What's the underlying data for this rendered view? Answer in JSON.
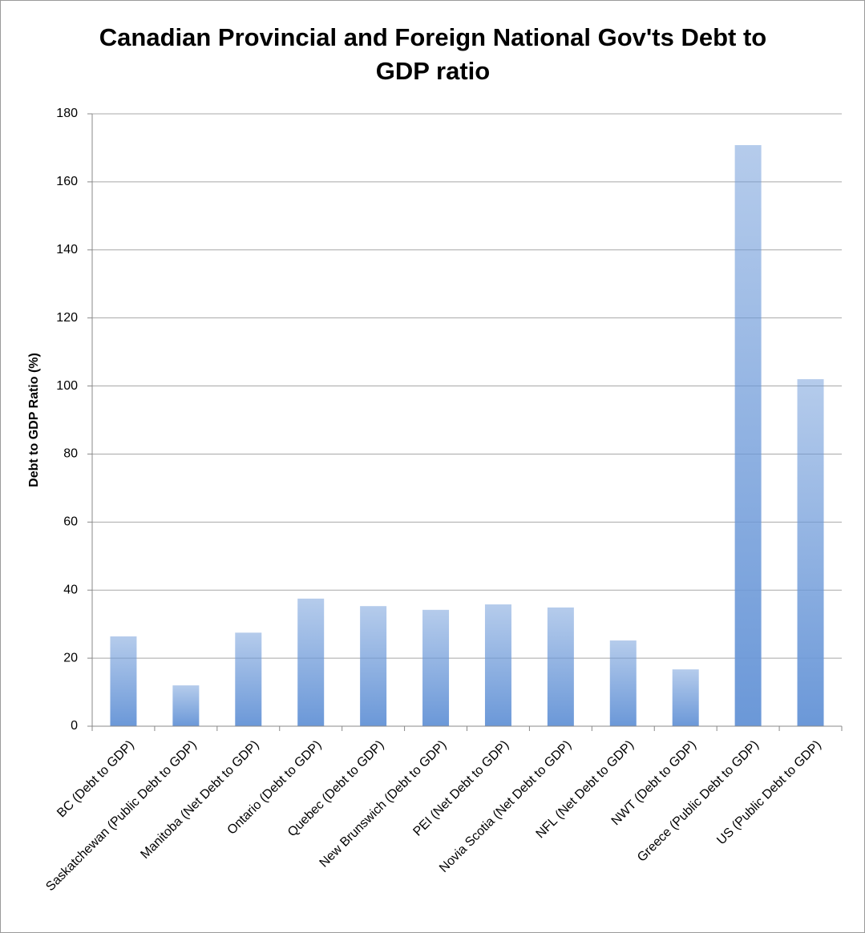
{
  "chart_data": {
    "type": "bar",
    "title": "Canadian Provincial and Foreign National Gov'ts Debt to GDP ratio",
    "y_label": "Debt to GDP Ratio (%)",
    "categories": [
      "BC (Debt to GDP)",
      "Saskatchewan (Public Debt to GDP)",
      "Manitoba (Net Debt to GDP)",
      "Ontario (Debt to GDP)",
      "Quebec (Debt to GDP)",
      "New Brunswich (Debt to GDP)",
      "PEI (Net Debt to GDP)",
      "Novia Scotia (Net Debt to GDP)",
      "NFL (Net Debt to GDP)",
      "NWT (Debt to GDP)",
      "Greece (Public Debt to GDP)",
      "US (Public Debt to GDP)"
    ],
    "values": [
      26.4,
      12,
      27.5,
      37.5,
      35.3,
      34.2,
      35.8,
      34.9,
      25.2,
      16.7,
      170.8,
      102
    ],
    "color": "#6b98d8",
    "ylim": [
      0,
      180
    ],
    "yticks": [
      0,
      20,
      40,
      60,
      80,
      100,
      120,
      140,
      160,
      180
    ],
    "grid": true
  }
}
